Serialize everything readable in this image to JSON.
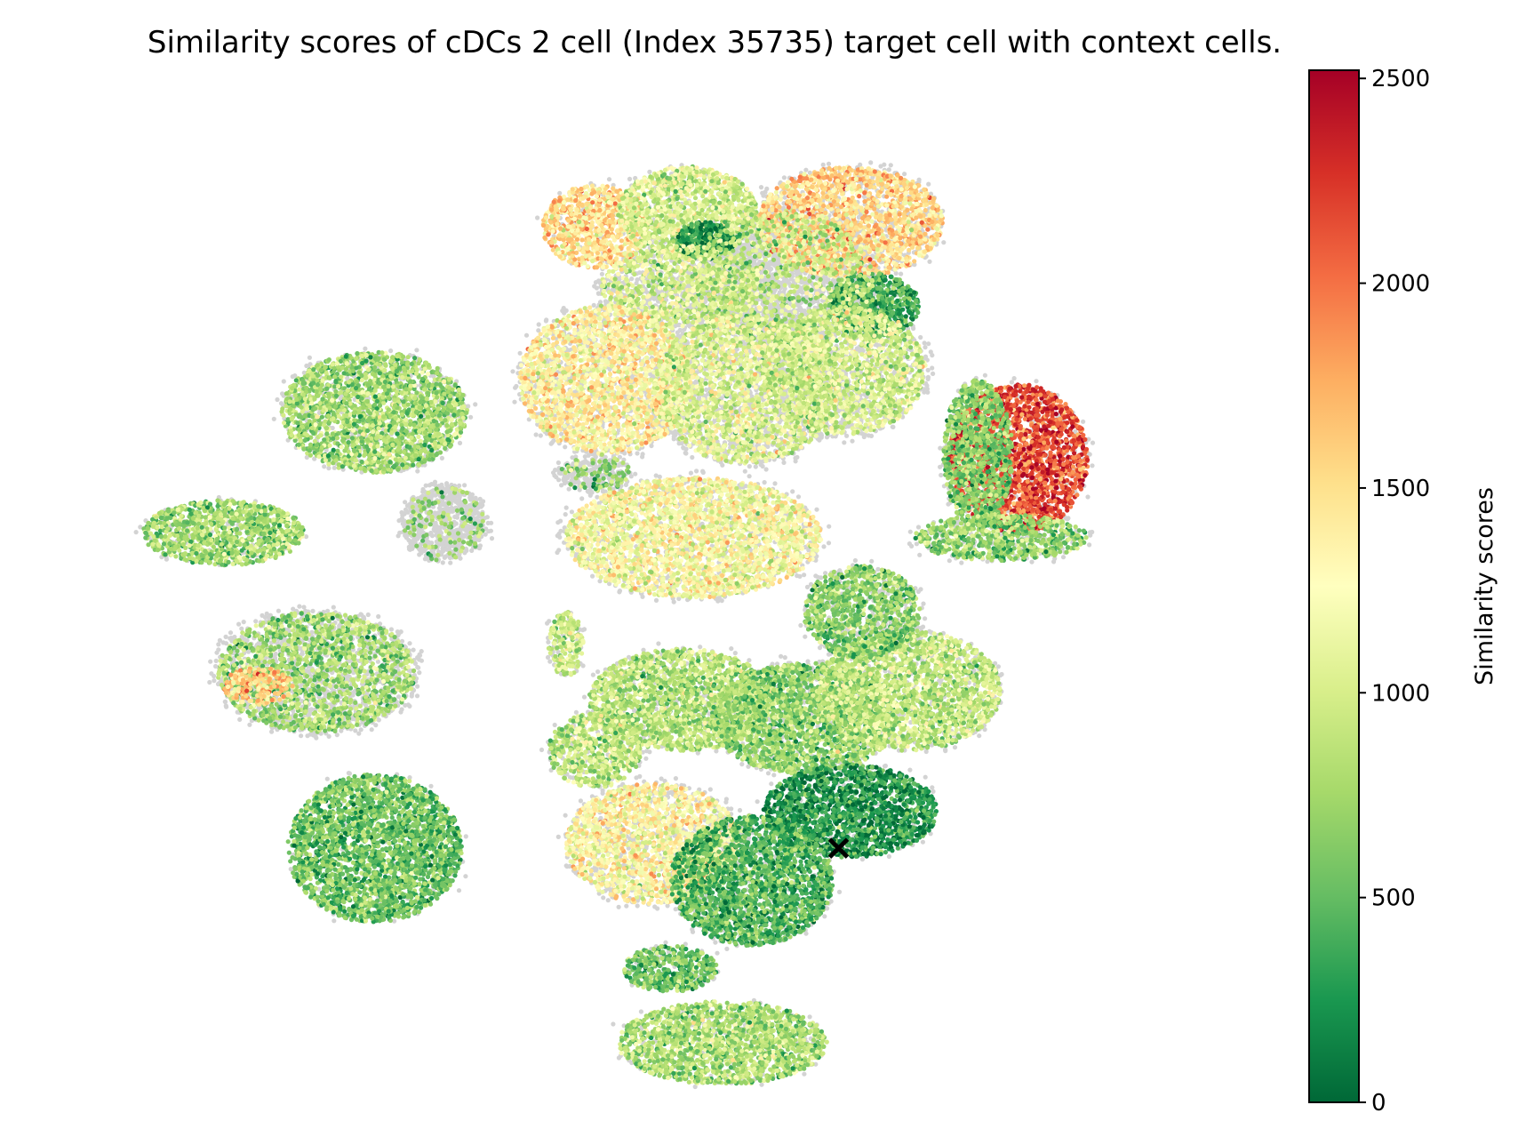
{
  "chart_data": {
    "type": "scatter",
    "title": "Similarity scores of cDCs 2 cell (Index 35735) target cell with context cells.",
    "xlabel": "",
    "ylabel": "",
    "axes_visible": false,
    "background_cell_color": "#d3d3d3",
    "colormap": "RdYlGn_r",
    "colormap_stops": [
      "#006837",
      "#1a9850",
      "#66bd63",
      "#a6d96a",
      "#d9ef8b",
      "#ffffbf",
      "#fee08b",
      "#fdae61",
      "#f46d43",
      "#d73027",
      "#a50026"
    ],
    "colorbar": {
      "label": "Similarity scores",
      "range": [
        0,
        2520
      ],
      "ticks": [
        0,
        500,
        1000,
        1500,
        2000,
        2500
      ],
      "tick_labels": [
        "0",
        "500",
        "1000",
        "1500",
        "2000",
        "2500"
      ]
    },
    "target_cell": {
      "marker": "x",
      "color": "#000000",
      "x": 3.2,
      "y": -5.1
    },
    "clusters": [
      {
        "x": -1.0,
        "y": 8.3,
        "rx": 0.9,
        "ry": 0.9,
        "score": 1500,
        "gray": 0.1
      },
      {
        "x": 0.6,
        "y": 8.6,
        "rx": 1.2,
        "ry": 1.0,
        "score": 1000,
        "gray": 0.1
      },
      {
        "x": 0.9,
        "y": 8.0,
        "rx": 0.5,
        "ry": 0.4,
        "score": 250,
        "gray": 0.0
      },
      {
        "x": 0.5,
        "y": 7.0,
        "rx": 1.4,
        "ry": 0.9,
        "score": 1000,
        "gray": 0.5
      },
      {
        "x": 3.4,
        "y": 8.4,
        "rx": 1.6,
        "ry": 1.2,
        "score": 1550,
        "gray": 0.3
      },
      {
        "x": 3.8,
        "y": 6.6,
        "rx": 0.8,
        "ry": 0.7,
        "score": 400,
        "gray": 0.1
      },
      {
        "x": 2.2,
        "y": 7.2,
        "rx": 1.6,
        "ry": 1.4,
        "score": 900,
        "gray": 0.85
      },
      {
        "x": -0.8,
        "y": 5.0,
        "rx": 1.5,
        "ry": 1.6,
        "score": 1350,
        "gray": 0.3
      },
      {
        "x": 1.6,
        "y": 4.8,
        "rx": 1.6,
        "ry": 1.6,
        "score": 1050,
        "gray": 0.45
      },
      {
        "x": 3.3,
        "y": 5.2,
        "rx": 1.4,
        "ry": 1.4,
        "score": 1000,
        "gray": 0.4
      },
      {
        "x": -4.8,
        "y": 4.3,
        "rx": 1.6,
        "ry": 1.3,
        "score": 750,
        "gray": 0.2
      },
      {
        "x": -3.6,
        "y": 1.9,
        "rx": 0.7,
        "ry": 0.8,
        "score": 700,
        "gray": 1.0
      },
      {
        "x": -1.0,
        "y": 3.0,
        "rx": 0.6,
        "ry": 0.4,
        "score": 700,
        "gray": 0.8
      },
      {
        "x": 6.3,
        "y": 3.3,
        "rx": 1.2,
        "ry": 1.6,
        "score": 2150,
        "gray": 0.1
      },
      {
        "x": 5.6,
        "y": 3.4,
        "rx": 0.6,
        "ry": 1.6,
        "score": 650,
        "gray": 0.1
      },
      {
        "x": 6.0,
        "y": 1.6,
        "rx": 1.5,
        "ry": 0.5,
        "score": 700,
        "gray": 0.2
      },
      {
        "x": -7.4,
        "y": 1.7,
        "rx": 1.4,
        "ry": 0.7,
        "score": 750,
        "gray": 0.1
      },
      {
        "x": 0.7,
        "y": 1.6,
        "rx": 2.2,
        "ry": 1.3,
        "score": 1250,
        "gray": 0.2
      },
      {
        "x": -5.8,
        "y": -1.3,
        "rx": 1.7,
        "ry": 1.3,
        "score": 750,
        "gray": 0.5
      },
      {
        "x": -6.8,
        "y": -1.6,
        "rx": 0.6,
        "ry": 0.4,
        "score": 1600,
        "gray": 0.3
      },
      {
        "x": -1.5,
        "y": -0.7,
        "rx": 0.3,
        "ry": 0.7,
        "score": 950,
        "gray": 0.2
      },
      {
        "x": 0.5,
        "y": -1.9,
        "rx": 1.6,
        "ry": 1.1,
        "score": 850,
        "gray": 0.15
      },
      {
        "x": 2.6,
        "y": -2.3,
        "rx": 1.6,
        "ry": 1.2,
        "score": 700,
        "gray": 0.15
      },
      {
        "x": 4.4,
        "y": -1.7,
        "rx": 1.6,
        "ry": 1.3,
        "score": 900,
        "gray": 0.2
      },
      {
        "x": 3.6,
        "y": 0.0,
        "rx": 1.0,
        "ry": 1.0,
        "score": 650,
        "gray": 0.25
      },
      {
        "x": -1.0,
        "y": -3.0,
        "rx": 0.8,
        "ry": 0.8,
        "score": 900,
        "gray": 0.2
      },
      {
        "x": 3.4,
        "y": -4.3,
        "rx": 1.5,
        "ry": 1.0,
        "score": 250,
        "gray": 0.1
      },
      {
        "x": -4.8,
        "y": -5.1,
        "rx": 1.5,
        "ry": 1.6,
        "score": 550,
        "gray": 0.05
      },
      {
        "x": 0.0,
        "y": -5.0,
        "rx": 1.5,
        "ry": 1.3,
        "score": 1300,
        "gray": 0.3
      },
      {
        "x": 1.7,
        "y": -5.8,
        "rx": 1.4,
        "ry": 1.4,
        "score": 450,
        "gray": 0.15
      },
      {
        "x": 0.3,
        "y": -7.7,
        "rx": 0.8,
        "ry": 0.5,
        "score": 550,
        "gray": 0.1
      },
      {
        "x": 1.2,
        "y": -9.3,
        "rx": 1.8,
        "ry": 0.9,
        "score": 800,
        "gray": 0.1
      }
    ]
  }
}
